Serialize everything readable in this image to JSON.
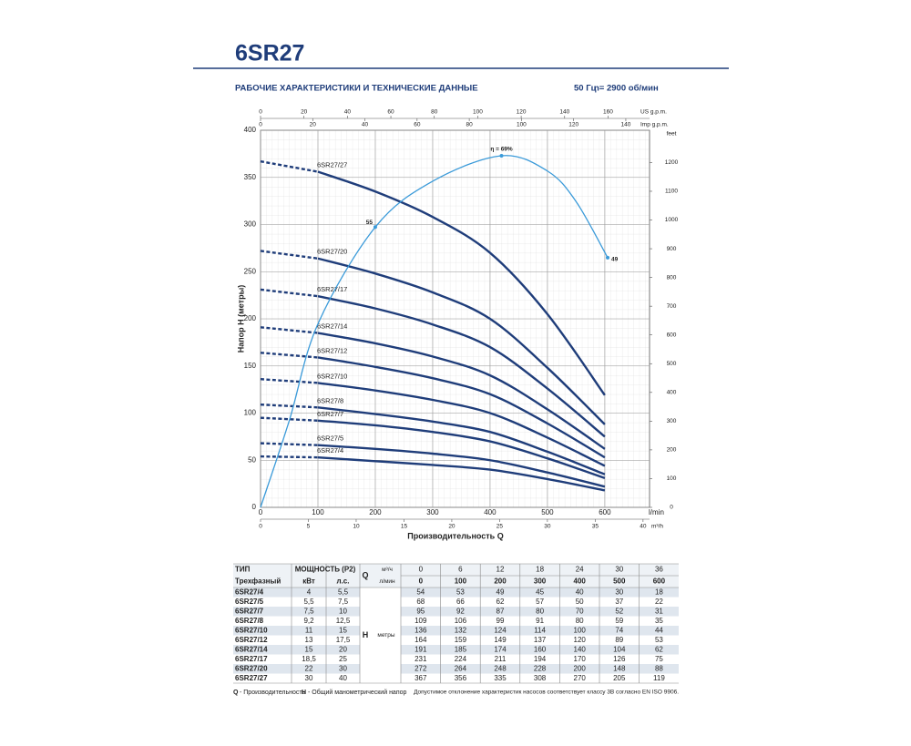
{
  "header": {
    "title": "6SR27",
    "subtitle": "РАБОЧИЕ ХАРАКТЕРИСТИКИ И ТЕХНИЧЕСКИЕ ДАННЫЕ",
    "frequency": "50 Гц",
    "speed": "n= 2900 об/мин"
  },
  "chart_data": {
    "type": "line",
    "xlabel": "Производительность Q",
    "ylabel": "Напор H (метры)",
    "x": [
      0,
      100,
      200,
      300,
      400,
      500,
      600
    ],
    "xlim": [
      0,
      678
    ],
    "xticks": [
      0,
      100,
      200,
      300,
      400,
      500,
      600
    ],
    "xunit": "l/min",
    "x2lim": [
      0,
      40.68
    ],
    "x2ticks": [
      0,
      5,
      10,
      15,
      20,
      25,
      30,
      35,
      40
    ],
    "x2unit": "m³/h",
    "x3lim": [
      0,
      179.1
    ],
    "x3ticks": [
      0,
      20,
      40,
      60,
      80,
      100,
      120,
      140,
      160
    ],
    "x3unit": "US g.p.m.",
    "x4lim": [
      0,
      149.1
    ],
    "x4ticks": [
      0,
      20,
      40,
      60,
      80,
      100,
      120,
      140
    ],
    "x4unit": "Imp g.p.m.",
    "ylim": [
      0,
      400
    ],
    "yticks": [
      0,
      50,
      100,
      150,
      200,
      250,
      300,
      350,
      400
    ],
    "y2lim": [
      0,
      1312.3
    ],
    "y2ticks": [
      0,
      100,
      200,
      300,
      400,
      500,
      600,
      700,
      800,
      900,
      1000,
      1100,
      1200
    ],
    "y2unit": "feet",
    "grid": true,
    "series": [
      {
        "name": "6SR27/4",
        "color": "#1f3d7a",
        "values": [
          54,
          53,
          49,
          45,
          40,
          30,
          18
        ]
      },
      {
        "name": "6SR27/5",
        "color": "#1f3d7a",
        "values": [
          68,
          66,
          62,
          57,
          50,
          37,
          22
        ]
      },
      {
        "name": "6SR27/7",
        "color": "#1f3d7a",
        "values": [
          95,
          92,
          87,
          80,
          70,
          52,
          31
        ]
      },
      {
        "name": "6SR27/8",
        "color": "#1f3d7a",
        "values": [
          109,
          106,
          99,
          91,
          80,
          59,
          35
        ]
      },
      {
        "name": "6SR27/10",
        "color": "#1f3d7a",
        "values": [
          136,
          132,
          124,
          114,
          100,
          74,
          44
        ]
      },
      {
        "name": "6SR27/12",
        "color": "#1f3d7a",
        "values": [
          164,
          159,
          149,
          137,
          120,
          89,
          53
        ]
      },
      {
        "name": "6SR27/14",
        "color": "#1f3d7a",
        "values": [
          191,
          185,
          174,
          160,
          140,
          104,
          62
        ]
      },
      {
        "name": "6SR27/17",
        "color": "#1f3d7a",
        "values": [
          231,
          224,
          211,
          194,
          170,
          126,
          75
        ]
      },
      {
        "name": "6SR27/20",
        "color": "#1f3d7a",
        "values": [
          272,
          264,
          248,
          228,
          200,
          148,
          88
        ]
      },
      {
        "name": "6SR27/27",
        "color": "#1f3d7a",
        "values": [
          367,
          356,
          335,
          308,
          270,
          205,
          119
        ]
      }
    ],
    "efficiency": {
      "color": "#3a9ad9",
      "y3lim": [
        0,
        74
      ],
      "x": [
        0,
        50,
        100,
        200,
        300,
        420,
        500,
        550,
        605
      ],
      "values": [
        0,
        17,
        36,
        55,
        64,
        69,
        66,
        60,
        49
      ],
      "value_labels": [
        null,
        null,
        null,
        "55",
        null,
        "η = 69%",
        null,
        null,
        "49"
      ]
    }
  },
  "table": {
    "type": "ТИП",
    "power": "МОЩНОСТЬ (P2)",
    "phase": "Трехфазный",
    "kw": "кВт",
    "hp": "л.с.",
    "q": "Q",
    "m3h": "м³/ч",
    "lmin": "л/мин",
    "h": "H",
    "h_unit": "метры",
    "q_m3h": [
      0,
      6,
      12,
      18,
      24,
      30,
      36
    ],
    "rows": [
      {
        "kw": "4",
        "hp": "5,5"
      },
      {
        "kw": "5,5",
        "hp": "7,5"
      },
      {
        "kw": "7,5",
        "hp": "10"
      },
      {
        "kw": "9,2",
        "hp": "12,5"
      },
      {
        "kw": "11",
        "hp": "15"
      },
      {
        "kw": "13",
        "hp": "17,5"
      },
      {
        "kw": "15",
        "hp": "20"
      },
      {
        "kw": "18,5",
        "hp": "25"
      },
      {
        "kw": "22",
        "hp": "30"
      },
      {
        "kw": "30",
        "hp": "40"
      }
    ]
  },
  "footer": {
    "q_key": "Q",
    "q_text": "- Производительность",
    "h_key": "H",
    "h_text": "- Общий манометрический напор",
    "tolerance": "Допустимое отклонение характеристик насосов соответствует классу 3B согласно EN ISO 9906."
  }
}
